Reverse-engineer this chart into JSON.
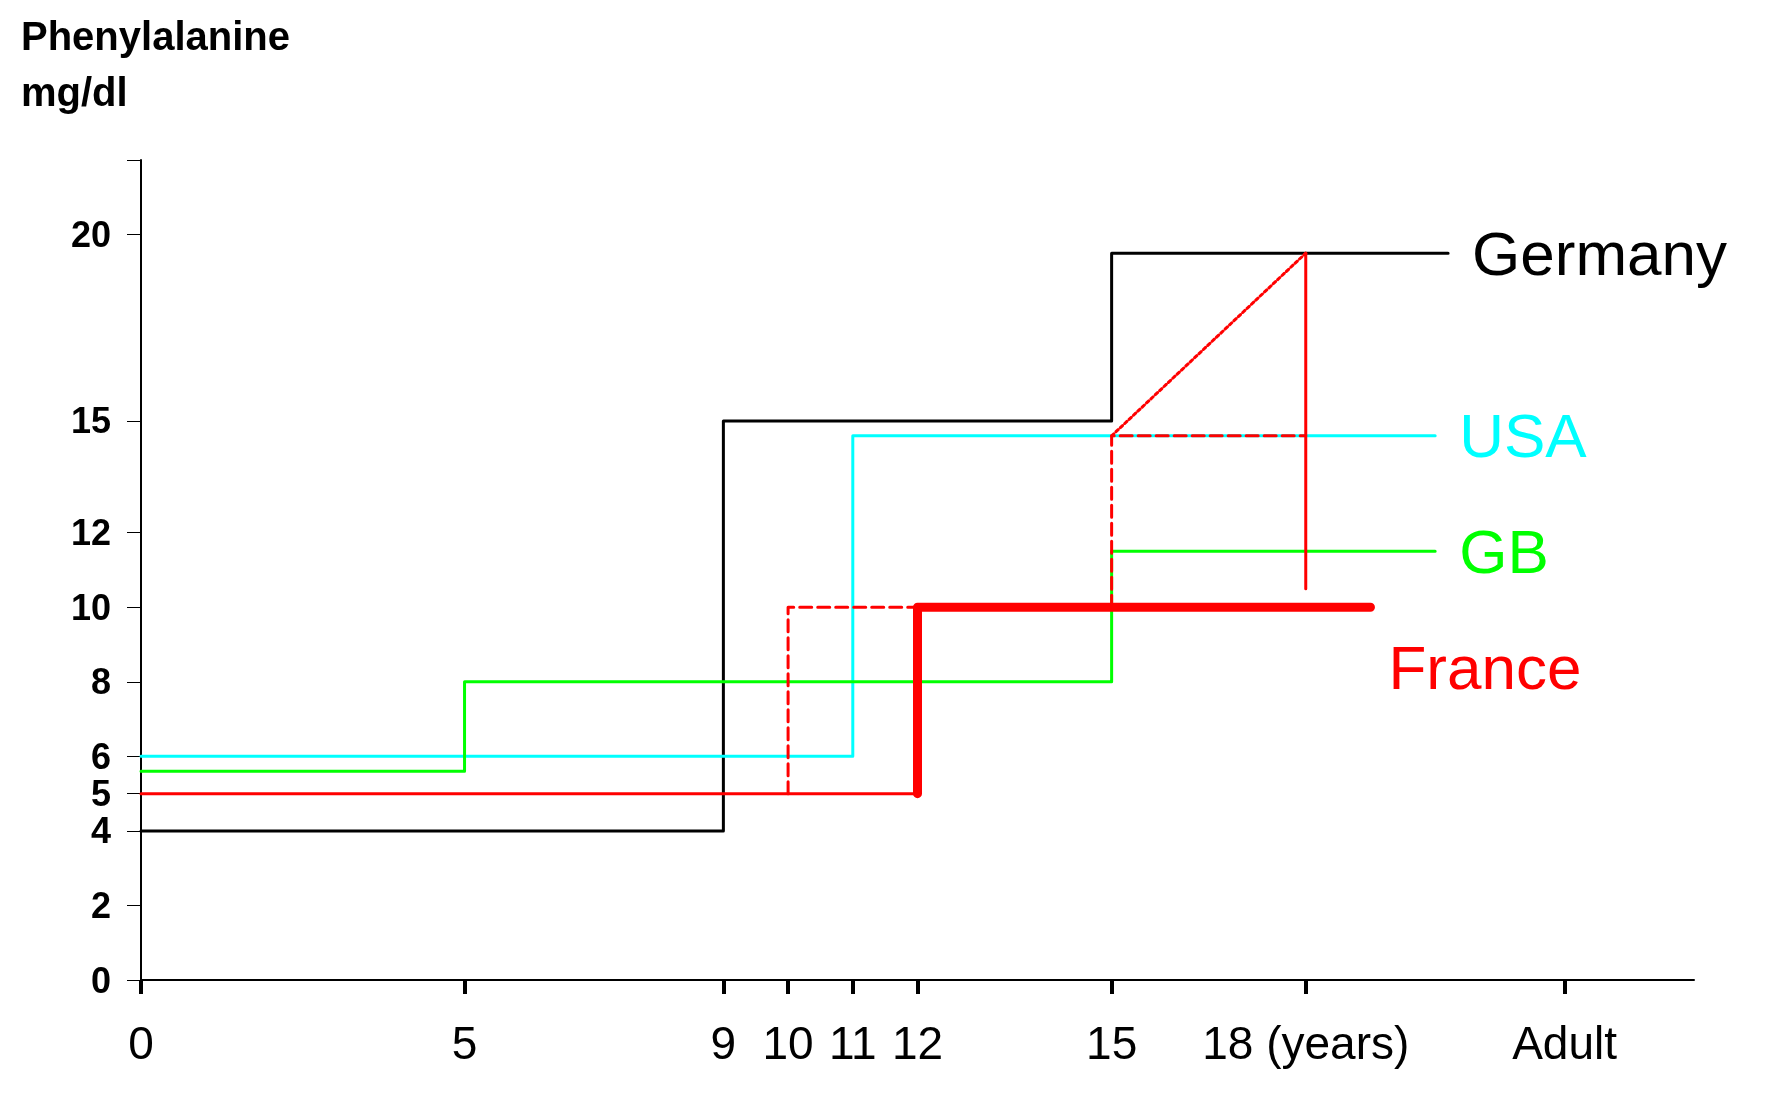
{
  "chart_data": {
    "type": "step",
    "ylabel": "Phenylalanine\nmg/dl",
    "xlim": [
      0,
      24
    ],
    "xticks": [
      0,
      5,
      9,
      10,
      11,
      12,
      15,
      {
        "value": 18,
        "label": "18 (years)"
      },
      {
        "value": 22,
        "label": "Adult"
      }
    ],
    "ylim": [
      0,
      22
    ],
    "yticks": [
      0,
      2,
      4,
      5,
      6,
      8,
      10,
      12,
      15,
      20,
      {
        "value": 22,
        "label": null
      }
    ],
    "grid": false,
    "legend": "right",
    "marker": "none",
    "series": [
      {
        "name": "Germany",
        "color": "#000000",
        "x": [
          0,
          9,
          15,
          20.2
        ],
        "values": [
          4,
          15,
          19.5,
          19.5
        ],
        "line_style": "solid"
      },
      {
        "name": "USA",
        "color": "#00ffff",
        "x": [
          0,
          11,
          20
        ],
        "values": [
          6,
          14.6,
          14.6
        ],
        "line_style": "solid"
      },
      {
        "name": "GB",
        "color": "#00ff00",
        "x": [
          0,
          5,
          15,
          20
        ],
        "values": [
          5.6,
          8,
          11.5,
          11.5
        ],
        "line_style": "solid"
      },
      {
        "color": "#ff0000",
        "x": [
          0,
          12
        ],
        "values": [
          5,
          5
        ],
        "line_style": "solid"
      },
      {
        "type": "line",
        "color": "#ff0000",
        "x": [
          10,
          10,
          12
        ],
        "values": [
          5,
          10,
          10
        ],
        "line_style": "dashed"
      },
      {
        "type": "line",
        "color": "#ff0000",
        "x": [
          15,
          15,
          18
        ],
        "values": [
          10,
          14.6,
          14.6
        ],
        "line_style": "dashed"
      },
      {
        "type": "line",
        "color": "#ff0000",
        "x": [
          15,
          18
        ],
        "values": [
          14.6,
          19.5
        ],
        "line_style": "dotted"
      },
      {
        "type": "line",
        "color": "#ff0000",
        "x": [
          18,
          18
        ],
        "values": [
          19.5,
          10.5
        ],
        "line_style": "solid"
      },
      {
        "name": "France",
        "color": "#ff0000",
        "x": [
          12,
          12,
          19
        ],
        "values": [
          5,
          10,
          10
        ],
        "type": "line",
        "line_style": "solid"
      }
    ]
  }
}
